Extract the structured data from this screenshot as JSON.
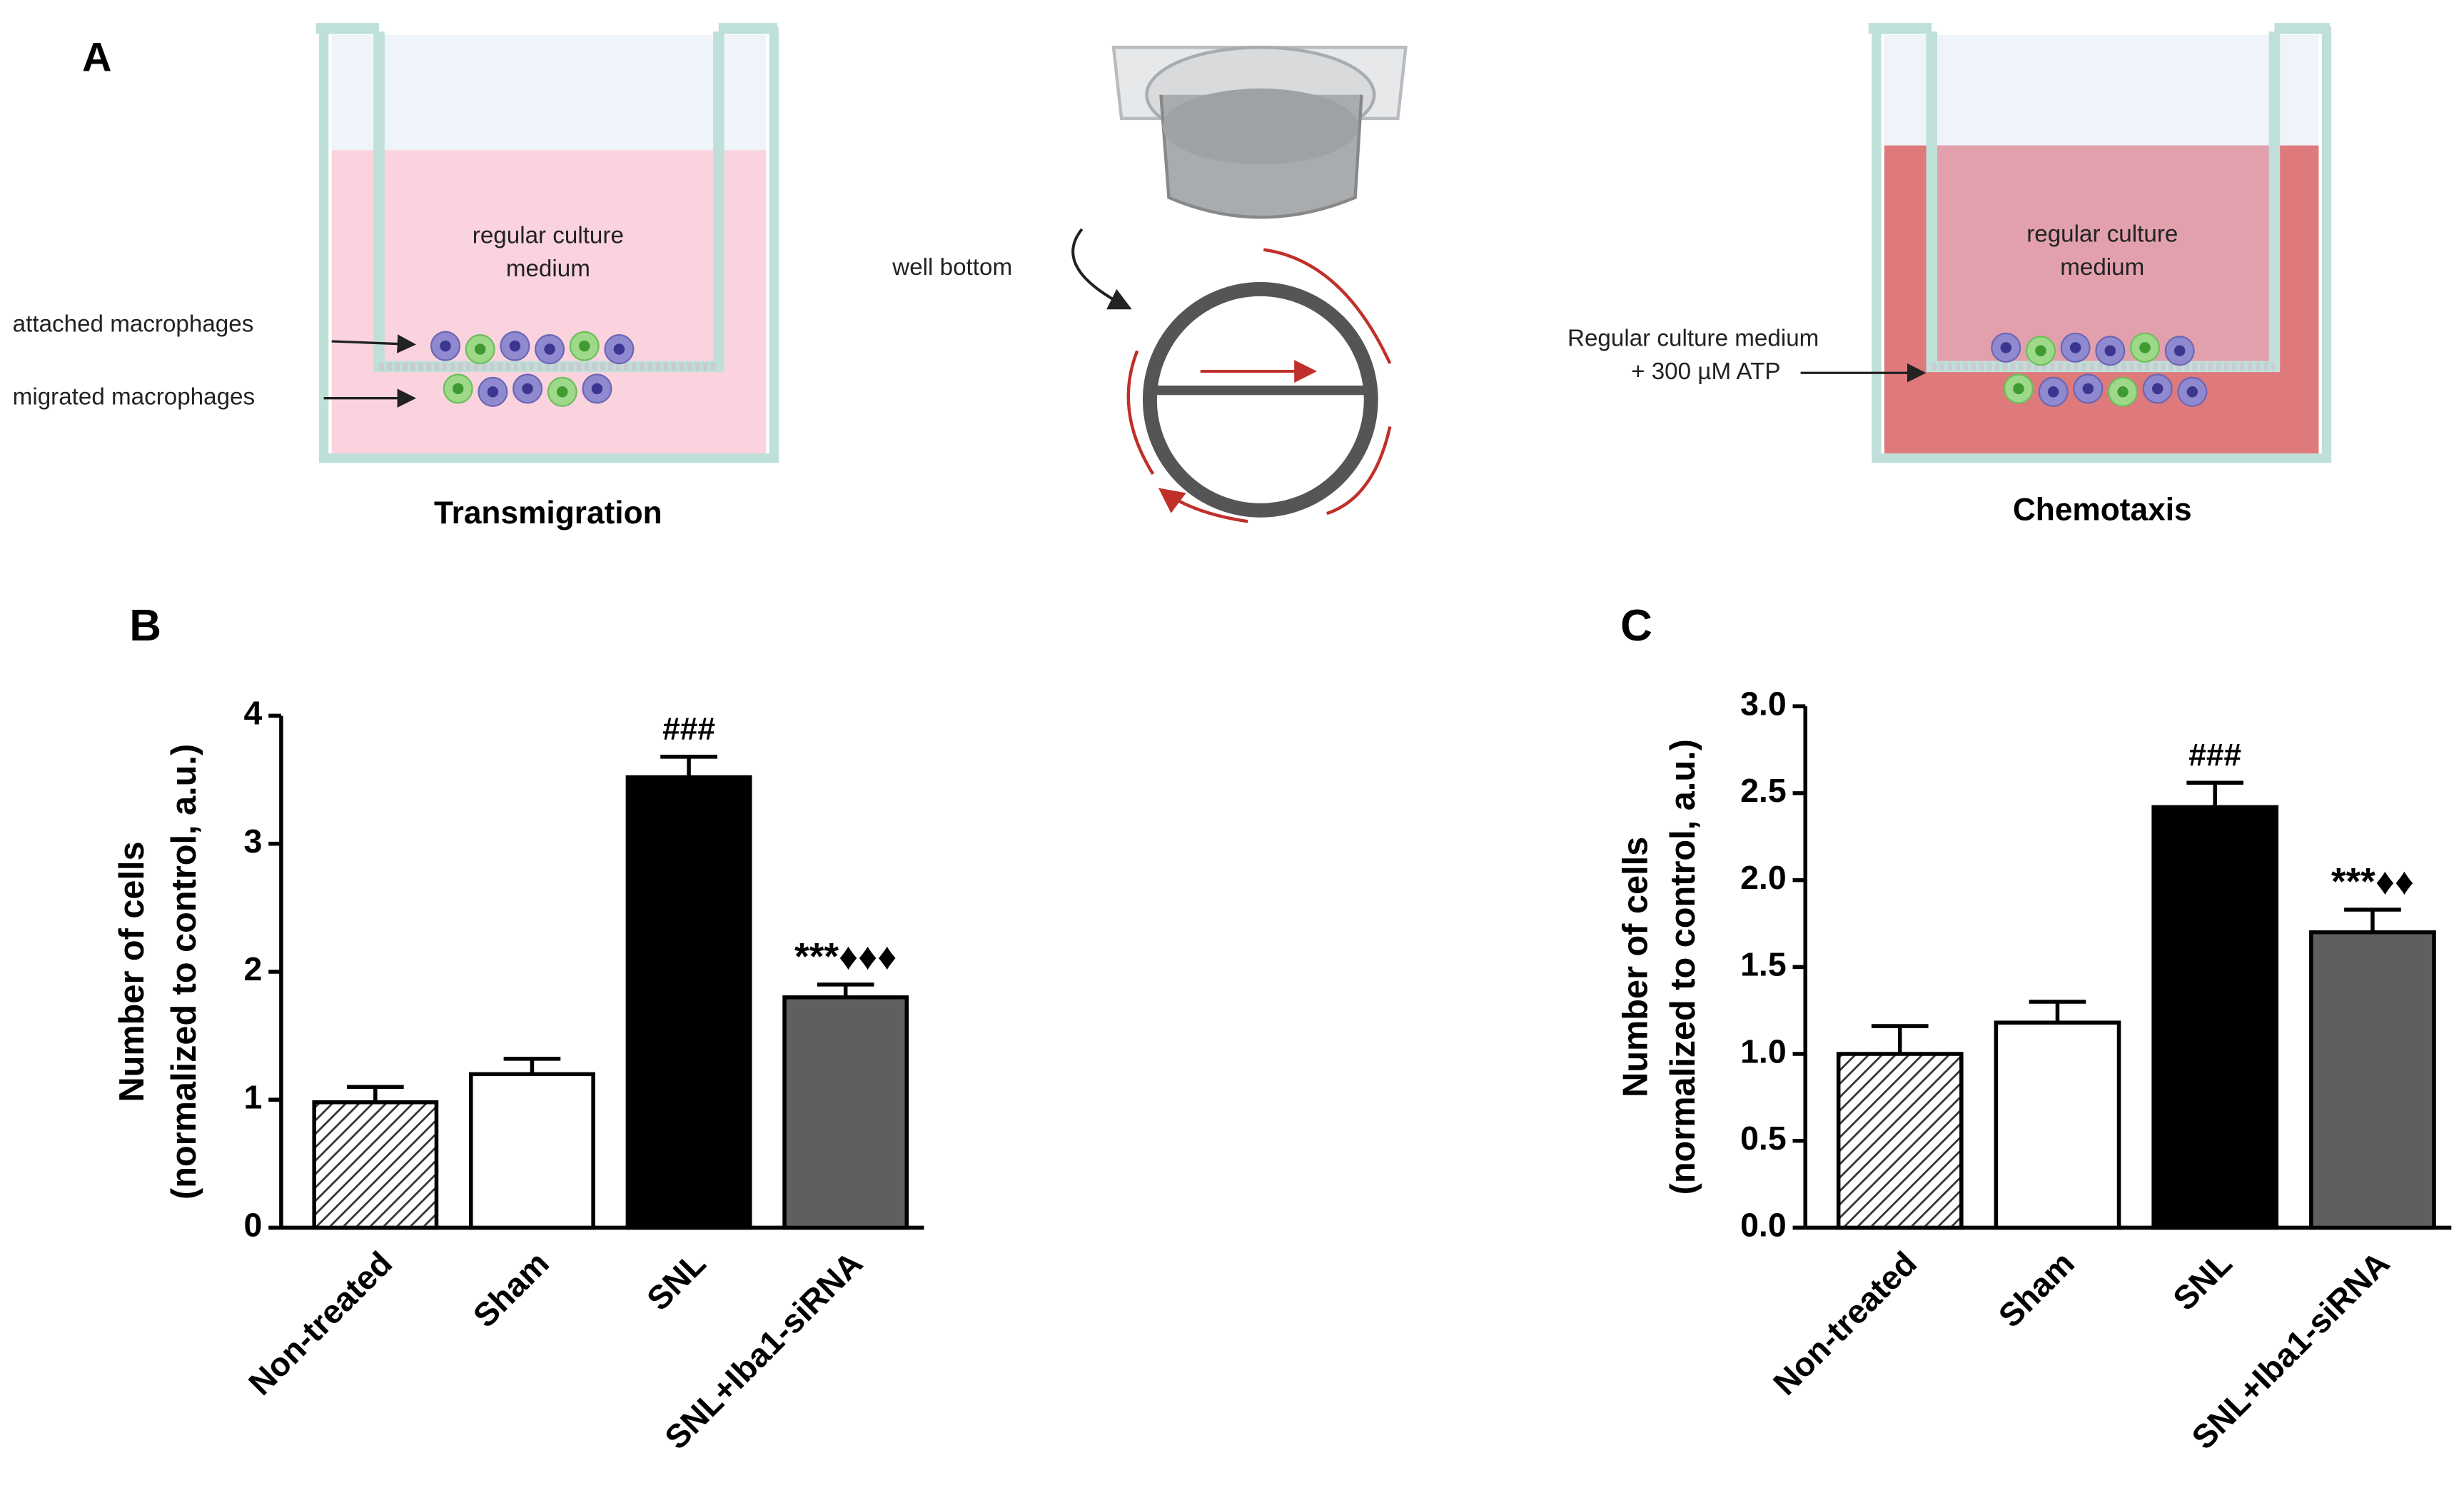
{
  "panel_a": {
    "label": "A",
    "medium_line1": "regular culture",
    "medium_line2": "medium",
    "attached": "attached macrophages",
    "migrated": "migrated macrophages",
    "left_caption": "Transmigration",
    "well_bottom": "well bottom",
    "atp_line1": "Regular culture  medium",
    "atp_line2": "+ 300 µM ATP",
    "right_medium_line1": "regular culture",
    "right_medium_line2": "medium",
    "right_caption": "Chemotaxis"
  },
  "chart_data": [
    {
      "type": "bar",
      "label": "B",
      "ylabel": [
        "Number of cells",
        "(normalized to control, a.u.)"
      ],
      "categories": [
        "Non-treated",
        "Sham",
        "SNL",
        "SNL+Iba1-siRNA"
      ],
      "values": [
        0.98,
        1.2,
        3.52,
        1.8
      ],
      "errors": [
        0.12,
        0.12,
        0.16,
        0.1
      ],
      "colors": [
        "#ffffff",
        "#ffffff",
        "#000000",
        "#5f5f5f"
      ],
      "hatch": [
        true,
        false,
        false,
        false
      ],
      "annotations": [
        null,
        null,
        "###",
        "***♦♦♦"
      ],
      "ylim": [
        0,
        4
      ],
      "yticks": [
        0,
        1,
        2,
        3,
        4
      ]
    },
    {
      "type": "bar",
      "label": "C",
      "ylabel": [
        "Number of cells",
        "(normalized to control, a.u.)"
      ],
      "categories": [
        "Non-treated",
        "Sham",
        "SNL",
        "SNL+Iba1-siRNA"
      ],
      "values": [
        1.0,
        1.18,
        2.42,
        1.7
      ],
      "errors": [
        0.16,
        0.12,
        0.14,
        0.13
      ],
      "colors": [
        "#ffffff",
        "#ffffff",
        "#000000",
        "#5f5f5f"
      ],
      "hatch": [
        true,
        false,
        false,
        false
      ],
      "annotations": [
        null,
        null,
        "###",
        "***♦♦"
      ],
      "ylim": [
        0,
        3
      ],
      "yticks": [
        {
          "value": 0,
          "label": "0.0"
        },
        {
          "value": 0.5,
          "label": "0.5"
        },
        {
          "value": 1,
          "label": "1.0"
        },
        {
          "value": 1.5,
          "label": "1.5"
        },
        {
          "value": 2,
          "label": "2.0"
        },
        {
          "value": 2.5,
          "label": "2.5"
        },
        {
          "value": 3,
          "label": "3.0"
        }
      ]
    }
  ]
}
